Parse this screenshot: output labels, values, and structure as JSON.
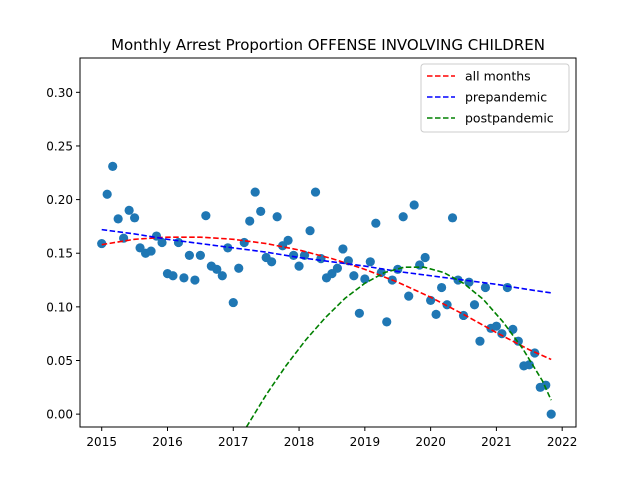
{
  "chart_data": {
    "type": "scatter",
    "title": "Monthly Arrest Proportion OFFENSE INVOLVING CHILDREN",
    "xlabel": "",
    "ylabel": "",
    "xlim": [
      2014.67,
      2022.21
    ],
    "ylim": [
      -0.012,
      0.332
    ],
    "x_ticks": [
      2015,
      2016,
      2017,
      2018,
      2019,
      2020,
      2021,
      2022
    ],
    "y_ticks": [
      0.0,
      0.05,
      0.1,
      0.15,
      0.2,
      0.25,
      0.3
    ],
    "x_tick_labels": [
      "2015",
      "2016",
      "2017",
      "2018",
      "2019",
      "2020",
      "2021",
      "2022"
    ],
    "y_tick_labels": [
      "0.00",
      "0.05",
      "0.10",
      "0.15",
      "0.20",
      "0.25",
      "0.30"
    ],
    "grid": false,
    "legend_position": "top-right",
    "point_color": "#1f77b4",
    "points": {
      "x": [
        2015.0,
        2015.083,
        2015.167,
        2015.25,
        2015.333,
        2015.417,
        2015.5,
        2015.583,
        2015.667,
        2015.75,
        2015.833,
        2015.917,
        2016.0,
        2016.083,
        2016.167,
        2016.25,
        2016.333,
        2016.417,
        2016.5,
        2016.583,
        2016.667,
        2016.75,
        2016.833,
        2016.917,
        2017.0,
        2017.083,
        2017.167,
        2017.25,
        2017.333,
        2017.417,
        2017.5,
        2017.583,
        2017.667,
        2017.75,
        2017.833,
        2017.917,
        2018.0,
        2018.083,
        2018.167,
        2018.25,
        2018.333,
        2018.417,
        2018.5,
        2018.583,
        2018.667,
        2018.75,
        2018.833,
        2018.917,
        2019.0,
        2019.083,
        2019.167,
        2019.25,
        2019.333,
        2019.417,
        2019.5,
        2019.583,
        2019.667,
        2019.75,
        2019.833,
        2019.917,
        2020.0,
        2020.083,
        2020.167,
        2020.25,
        2020.333,
        2020.417,
        2020.5,
        2020.583,
        2020.667,
        2020.75,
        2020.833,
        2020.917,
        2021.0,
        2021.083,
        2021.167,
        2021.25,
        2021.333,
        2021.417,
        2021.5,
        2021.583,
        2021.667,
        2021.75,
        2021.833
      ],
      "y": [
        0.159,
        0.205,
        0.231,
        0.182,
        0.164,
        0.19,
        0.183,
        0.155,
        0.15,
        0.152,
        0.166,
        0.16,
        0.131,
        0.129,
        0.16,
        0.127,
        0.148,
        0.125,
        0.148,
        0.185,
        0.138,
        0.135,
        0.129,
        0.155,
        0.104,
        0.136,
        0.16,
        0.18,
        0.207,
        0.189,
        0.146,
        0.142,
        0.184,
        0.157,
        0.162,
        0.148,
        0.138,
        0.148,
        0.171,
        0.207,
        0.145,
        0.127,
        0.131,
        0.136,
        0.154,
        0.143,
        0.129,
        0.094,
        0.126,
        0.142,
        0.178,
        0.132,
        0.086,
        0.125,
        0.135,
        0.184,
        0.11,
        0.195,
        0.139,
        0.146,
        0.106,
        0.093,
        0.118,
        0.102,
        0.183,
        0.125,
        0.092,
        0.123,
        0.102,
        0.068,
        0.118,
        0.08,
        0.082,
        0.075,
        0.118,
        0.079,
        0.068,
        0.045,
        0.046,
        0.057,
        0.025,
        0.027,
        0.0
      ]
    },
    "series": [
      {
        "name": "all months",
        "color": "#ff0000",
        "style": "dashed",
        "x": [
          2015.0,
          2015.5,
          2016.0,
          2016.5,
          2017.0,
          2017.5,
          2018.0,
          2018.5,
          2019.0,
          2019.5,
          2020.0,
          2020.5,
          2021.0,
          2021.5,
          2021.833
        ],
        "y": [
          0.158,
          0.163,
          0.165,
          0.165,
          0.163,
          0.159,
          0.153,
          0.145,
          0.135,
          0.123,
          0.109,
          0.093,
          0.076,
          0.06,
          0.051
        ]
      },
      {
        "name": "prepandemic",
        "color": "#0000ff",
        "style": "dashed",
        "x": [
          2015.0,
          2015.5,
          2016.0,
          2016.5,
          2017.0,
          2017.5,
          2018.0,
          2018.5,
          2019.0,
          2019.5,
          2020.0,
          2020.5,
          2021.0,
          2021.5,
          2021.833
        ],
        "y": [
          0.172,
          0.168,
          0.163,
          0.159,
          0.155,
          0.151,
          0.146,
          0.142,
          0.138,
          0.133,
          0.129,
          0.125,
          0.121,
          0.116,
          0.113
        ]
      },
      {
        "name": "postpandemic",
        "color": "#008000",
        "style": "dashed",
        "x": [
          2017.2,
          2017.5,
          2017.8,
          2018.1,
          2018.4,
          2018.7,
          2019.0,
          2019.3,
          2019.6,
          2019.9,
          2020.2,
          2020.5,
          2020.8,
          2021.1,
          2021.4,
          2021.7,
          2021.833
        ],
        "y": [
          -0.012,
          0.018,
          0.045,
          0.069,
          0.09,
          0.108,
          0.122,
          0.132,
          0.137,
          0.137,
          0.132,
          0.122,
          0.107,
          0.086,
          0.061,
          0.031,
          0.013
        ]
      }
    ]
  }
}
